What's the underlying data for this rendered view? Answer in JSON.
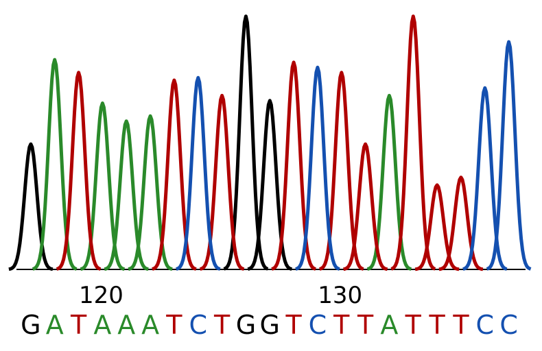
{
  "chart_data": {
    "type": "chromatogram",
    "x": [
      117,
      118,
      119,
      120,
      121,
      122,
      123,
      124,
      125,
      126,
      127,
      128,
      129,
      130,
      131,
      132,
      133,
      134,
      135,
      136,
      137
    ],
    "bases": [
      "G",
      "A",
      "T",
      "A",
      "A",
      "A",
      "T",
      "C",
      "T",
      "G",
      "G",
      "T",
      "C",
      "T",
      "T",
      "A",
      "T",
      "T",
      "T",
      "C",
      "C"
    ],
    "xlim": [
      116.4,
      137.7
    ],
    "xticks": [
      120,
      130
    ],
    "ylim": [
      0,
      100
    ],
    "series": [
      {
        "name": "G",
        "color": "#000000",
        "values": [
          49,
          null,
          null,
          null,
          null,
          null,
          null,
          null,
          null,
          99,
          66,
          null,
          null,
          null,
          null,
          null,
          null,
          null,
          null,
          null,
          null
        ]
      },
      {
        "name": "A",
        "color": "#2a8a2a",
        "values": [
          null,
          82,
          null,
          65,
          58,
          60,
          null,
          null,
          null,
          null,
          null,
          null,
          null,
          null,
          null,
          68,
          null,
          null,
          null,
          null,
          null
        ]
      },
      {
        "name": "T",
        "color": "#b00000",
        "values": [
          null,
          null,
          77,
          null,
          null,
          null,
          74,
          null,
          68,
          null,
          null,
          81,
          null,
          77,
          49,
          null,
          99,
          33,
          36,
          null,
          null
        ]
      },
      {
        "name": "C",
        "color": "#1450b0",
        "values": [
          null,
          null,
          null,
          null,
          null,
          null,
          null,
          75,
          null,
          null,
          null,
          null,
          79,
          null,
          null,
          null,
          null,
          null,
          null,
          71,
          89
        ]
      }
    ]
  }
}
